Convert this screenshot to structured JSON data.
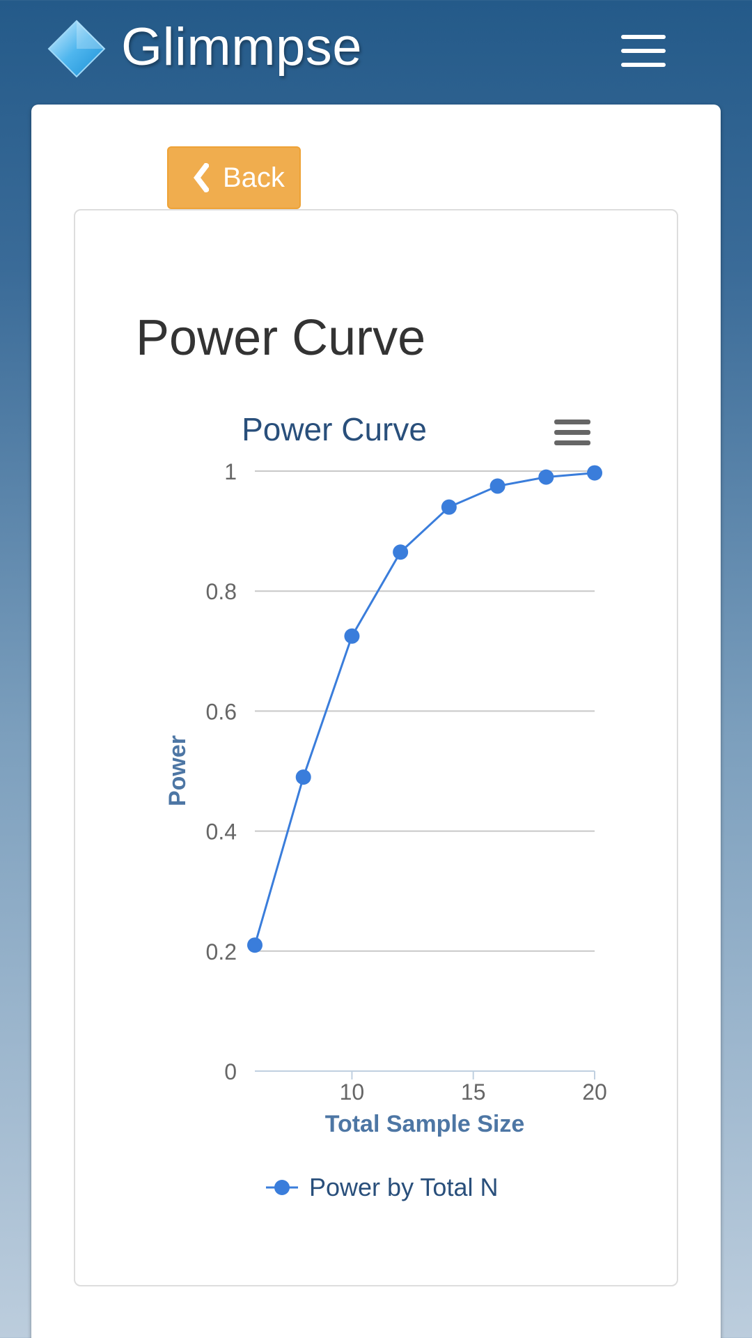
{
  "header": {
    "app_title": "Glimmpse",
    "logo_icon": "diamond-logo-icon",
    "menu_icon": "hamburger-menu-icon"
  },
  "back_button": {
    "icon": "chevron-left-icon",
    "label": "Back",
    "color": "#f0ad4e"
  },
  "page": {
    "title": "Power Curve"
  },
  "chart_menu_icon": "chart-context-menu-icon",
  "colors": {
    "series": "#3a7ddb",
    "header_bg": "#245a89",
    "chart_title": "#294f7b",
    "axis_title": "#4d76a4"
  },
  "chart_data": {
    "type": "line",
    "title": "Power Curve",
    "xlabel": "Total Sample Size",
    "ylabel": "Power",
    "xlim": [
      6,
      20
    ],
    "ylim": [
      0,
      1
    ],
    "x_ticks": [
      10,
      15,
      20
    ],
    "y_ticks": [
      0,
      0.2,
      0.4,
      0.6,
      0.8,
      1
    ],
    "grid": "horizontal",
    "legend_position": "bottom-center",
    "series": [
      {
        "name": "Power by Total N",
        "x": [
          6,
          8,
          10,
          12,
          14,
          16,
          18,
          20
        ],
        "y": [
          0.21,
          0.49,
          0.725,
          0.865,
          0.94,
          0.975,
          0.99,
          0.997
        ]
      }
    ]
  }
}
